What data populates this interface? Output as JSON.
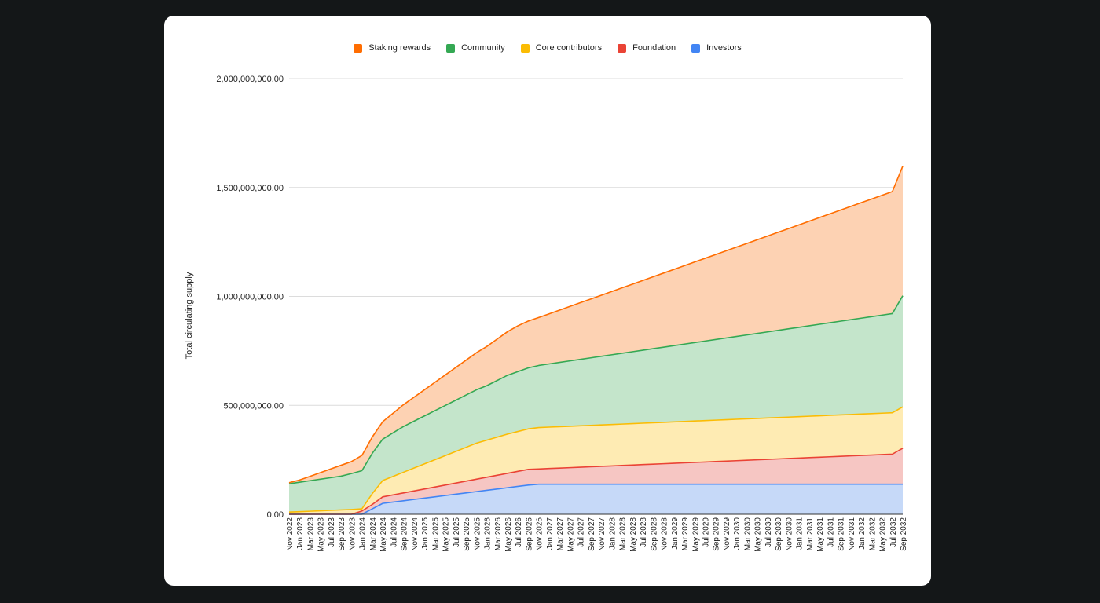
{
  "chart_data": {
    "type": "area",
    "stacked": true,
    "title": "",
    "xlabel": "",
    "ylabel": "Total circulating supply",
    "ylim": [
      0,
      2000000000
    ],
    "yticks": [
      0,
      500000000,
      1000000000,
      1500000000,
      2000000000
    ],
    "ytick_labels": [
      "0.00",
      "500,000,000.00",
      "1,000,000,000.00",
      "1,500,000,000.00",
      "2,000,000,000.00"
    ],
    "grid": true,
    "legend_position": "top",
    "x": [
      "Nov 2022",
      "Jan 2023",
      "Mar 2023",
      "May 2023",
      "Jul 2023",
      "Sep 2023",
      "Nov 2023",
      "Jan 2024",
      "Mar 2024",
      "May 2024",
      "Jul 2024",
      "Sep 2024",
      "Nov 2024",
      "Jan 2025",
      "Mar 2025",
      "May 2025",
      "Jul 2025",
      "Sep 2025",
      "Nov 2025",
      "Jan 2026",
      "Mar 2026",
      "May 2026",
      "Jul 2026",
      "Sep 2026",
      "Nov 2026",
      "Jan 2027",
      "Mar 2027",
      "May 2027",
      "Jul 2027",
      "Sep 2027",
      "Nov 2027",
      "Jan 2028",
      "Mar 2028",
      "May 2028",
      "Jul 2028",
      "Sep 2028",
      "Nov 2028",
      "Jan 2029",
      "Mar 2029",
      "May 2029",
      "Jul 2029",
      "Sep 2029",
      "Nov 2029",
      "Jan 2030",
      "Mar 2030",
      "May 2030",
      "Jul 2030",
      "Sep 2030",
      "Nov 2030",
      "Jan 2031",
      "Mar 2031",
      "May 2031",
      "Jul 2031",
      "Sep 2031",
      "Nov 2031",
      "Jan 2032",
      "Mar 2032",
      "May 2032",
      "Jul 2032",
      "Sep 2032"
    ],
    "series": [
      {
        "name": "Investors",
        "color": "#4285f4",
        "fill": "#c6d9f8",
        "values": [
          0,
          0,
          0,
          0,
          0,
          0,
          0,
          0,
          25000000,
          50000000,
          56000000,
          62000000,
          68000000,
          74000000,
          80000000,
          86000000,
          92000000,
          98000000,
          104000000,
          110000000,
          116000000,
          122000000,
          128000000,
          134000000,
          138000000,
          138000000,
          138000000,
          138000000,
          138000000,
          138000000,
          138000000,
          138000000,
          138000000,
          138000000,
          138000000,
          138000000,
          138000000,
          138000000,
          138000000,
          138000000,
          138000000,
          138000000,
          138000000,
          138000000,
          138000000,
          138000000,
          138000000,
          138000000,
          138000000,
          138000000,
          138000000,
          138000000,
          138000000,
          138000000,
          138000000,
          138000000,
          138000000,
          138000000,
          138000000,
          138000000
        ]
      },
      {
        "name": "Foundation",
        "color": "#ea4335",
        "fill": "#f6c6c3",
        "values": [
          0,
          0,
          0,
          0,
          0,
          0,
          0,
          15000000,
          20000000,
          30000000,
          33000000,
          36000000,
          39000000,
          42000000,
          45000000,
          48000000,
          51000000,
          54000000,
          57000000,
          60000000,
          63000000,
          66000000,
          69000000,
          72000000,
          70000000,
          72000000,
          74000000,
          76000000,
          78000000,
          80000000,
          82000000,
          84000000,
          86000000,
          88000000,
          90000000,
          92000000,
          94000000,
          96000000,
          98000000,
          100000000,
          102000000,
          104000000,
          106000000,
          108000000,
          110000000,
          112000000,
          114000000,
          116000000,
          118000000,
          120000000,
          122000000,
          124000000,
          126000000,
          128000000,
          130000000,
          132000000,
          134000000,
          136000000,
          138000000,
          165000000
        ]
      },
      {
        "name": "Core contributors",
        "color": "#fbbc04",
        "fill": "#feebb3",
        "values": [
          10000000,
          12000000,
          14000000,
          16000000,
          18000000,
          20000000,
          22000000,
          10000000,
          50000000,
          75000000,
          85000000,
          95000000,
          105000000,
          115000000,
          125000000,
          135000000,
          145000000,
          155000000,
          165000000,
          170000000,
          175000000,
          180000000,
          183000000,
          186000000,
          190000000,
          190000000,
          190000000,
          190000000,
          190000000,
          190000000,
          190000000,
          190000000,
          190000000,
          190000000,
          190000000,
          190000000,
          190000000,
          190000000,
          190000000,
          190000000,
          190000000,
          190000000,
          190000000,
          190000000,
          190000000,
          190000000,
          190000000,
          190000000,
          190000000,
          190000000,
          190000000,
          190000000,
          190000000,
          190000000,
          190000000,
          190000000,
          190000000,
          190000000,
          190000000,
          190000000
        ]
      },
      {
        "name": "Community",
        "color": "#34a853",
        "fill": "#c4e5cb",
        "values": [
          130000000,
          135000000,
          140000000,
          145000000,
          150000000,
          155000000,
          165000000,
          175000000,
          185000000,
          190000000,
          200000000,
          210000000,
          215000000,
          220000000,
          225000000,
          230000000,
          235000000,
          240000000,
          245000000,
          250000000,
          260000000,
          270000000,
          275000000,
          280000000,
          285000000,
          290000000,
          295000000,
          300000000,
          305000000,
          310000000,
          315000000,
          320000000,
          325000000,
          330000000,
          335000000,
          340000000,
          345000000,
          350000000,
          355000000,
          360000000,
          365000000,
          370000000,
          375000000,
          380000000,
          385000000,
          390000000,
          395000000,
          400000000,
          405000000,
          410000000,
          415000000,
          420000000,
          425000000,
          430000000,
          435000000,
          440000000,
          445000000,
          450000000,
          455000000,
          510000000
        ]
      },
      {
        "name": "Staking rewards",
        "color": "#ff6d01",
        "fill": "#fdd2b3",
        "values": [
          5000000,
          10000000,
          20000000,
          30000000,
          40000000,
          50000000,
          55000000,
          70000000,
          75000000,
          80000000,
          90000000,
          100000000,
          110000000,
          120000000,
          130000000,
          140000000,
          150000000,
          160000000,
          170000000,
          180000000,
          190000000,
          200000000,
          210000000,
          215000000,
          220000000,
          230000000,
          240000000,
          250000000,
          260000000,
          270000000,
          280000000,
          290000000,
          300000000,
          310000000,
          320000000,
          330000000,
          340000000,
          350000000,
          360000000,
          370000000,
          380000000,
          390000000,
          400000000,
          410000000,
          420000000,
          430000000,
          440000000,
          450000000,
          460000000,
          470000000,
          480000000,
          490000000,
          500000000,
          510000000,
          520000000,
          530000000,
          540000000,
          550000000,
          560000000,
          595000000
        ]
      }
    ],
    "legend_order": [
      "Staking rewards",
      "Community",
      "Core contributors",
      "Foundation",
      "Investors"
    ]
  }
}
